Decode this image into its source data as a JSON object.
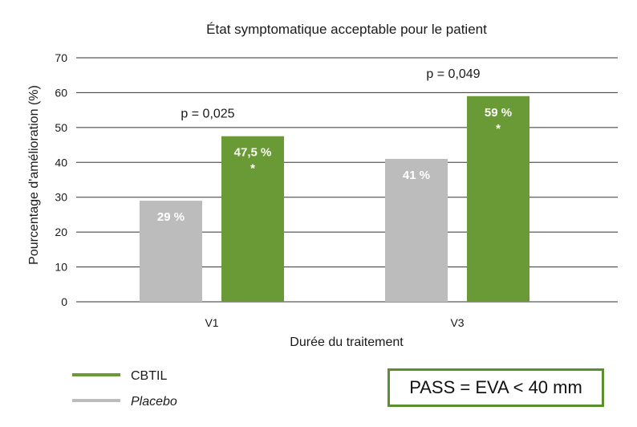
{
  "chart_data": {
    "type": "bar",
    "title": "État symptomatique acceptable pour le patient",
    "xlabel": "Durée du traitement",
    "ylabel": "Pourcentage d'amélioration (%)",
    "ylim": [
      0,
      70
    ],
    "yticks": [
      0,
      10,
      20,
      30,
      40,
      50,
      60,
      70
    ],
    "grid": true,
    "categories": [
      "V1",
      "V3"
    ],
    "series": [
      {
        "name": "Placebo",
        "color": "#bcbcbc",
        "values": [
          29,
          41
        ],
        "labels": [
          "29 %",
          "41 %"
        ],
        "significance": [
          "",
          ""
        ]
      },
      {
        "name": "CBTIL",
        "color": "#6a9a35",
        "values": [
          47.5,
          59
        ],
        "labels": [
          "47,5 %",
          "59 %"
        ],
        "significance": [
          "*",
          "*"
        ]
      }
    ],
    "pvalues": [
      "p = 0,025",
      "p = 0,049"
    ],
    "legend": [
      {
        "name": "CBTIL",
        "color": "#6a9a35",
        "italic": false
      },
      {
        "name": "Placebo",
        "color": "#bcbcbc",
        "italic": true
      }
    ],
    "legend_position": "bottom-left"
  },
  "note": {
    "text": "PASS = EVA < 40 mm",
    "border_color": "#5b8f2e"
  }
}
